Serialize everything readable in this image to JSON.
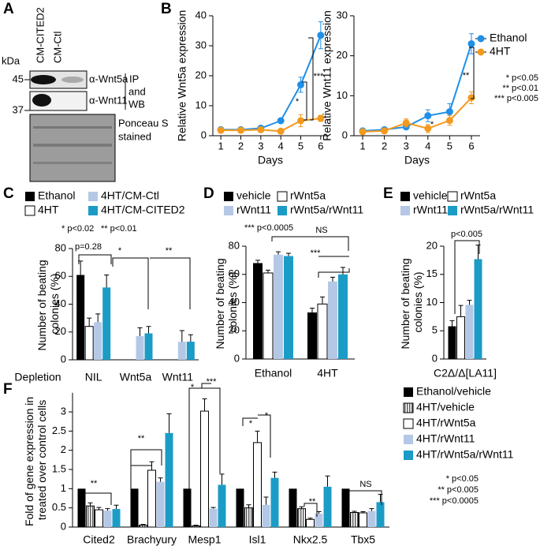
{
  "panel_labels": [
    "A",
    "B",
    "C",
    "D",
    "E",
    "F"
  ],
  "blot": {
    "unit": "kDa",
    "lanes": [
      "CM-CITED2",
      "CM-Ctl"
    ],
    "markers": [
      45,
      37
    ],
    "antibodies": [
      "α-Wnt5a",
      "α-Wnt11"
    ],
    "method": [
      "IP",
      "and",
      "WB"
    ],
    "stain": [
      "Ponceau S",
      "stained"
    ]
  },
  "chart_data": [
    {
      "type": "line",
      "ylabel": "Relative Wnt5a expression",
      "xlabel": "Days",
      "x": [
        1,
        2,
        3,
        4,
        5,
        6
      ],
      "xlim": [
        0.6,
        6.4
      ],
      "xticks": [
        1,
        2,
        3,
        4,
        5,
        6
      ],
      "ylim": [
        0,
        40
      ],
      "yticks": [
        0,
        10,
        20,
        30,
        40
      ],
      "series": [
        {
          "color": "#1f8fe8",
          "values": [
            2,
            2,
            2.5,
            5,
            17,
            33.5
          ],
          "errors": [
            0.3,
            0.6,
            0.8,
            0.6,
            2.5,
            4.5
          ]
        },
        {
          "color": "#f39a1e",
          "values": [
            1.8,
            1.8,
            2,
            1.5,
            5,
            5.8
          ],
          "errors": [
            0.3,
            0.4,
            0.5,
            0.3,
            2,
            1
          ]
        }
      ],
      "annotations": [
        "*",
        "***"
      ]
    },
    {
      "type": "line",
      "ylabel": "Relative Wnt11 expression",
      "xlabel": "Days",
      "x": [
        1,
        2,
        3,
        4,
        5,
        6
      ],
      "xlim": [
        0.6,
        6.4
      ],
      "xticks": [
        1,
        2,
        3,
        4,
        5,
        6
      ],
      "ylim": [
        0,
        30
      ],
      "yticks": [
        0,
        10,
        20,
        30
      ],
      "series": [
        {
          "name": "Ethanol",
          "color": "#1f8fe8",
          "values": [
            1.2,
            1.5,
            2.2,
            5,
            6,
            23
          ],
          "errors": [
            0.3,
            0.3,
            0.5,
            1.5,
            2,
            2.5
          ]
        },
        {
          "name": "4HT",
          "color": "#f39a1e",
          "values": [
            1,
            1.2,
            3.2,
            1.8,
            3.8,
            9.5
          ],
          "errors": [
            0.2,
            0.3,
            1,
            1,
            1.2,
            1.5
          ]
        }
      ],
      "legend": "top-right",
      "notes": [
        "* p<0.05",
        "** p<0.01",
        "*** p<0.005"
      ],
      "annotations": [
        "*",
        "**"
      ]
    },
    {
      "type": "bar",
      "ylabel": "Number of beating colonies (%)",
      "xlabel": "Depletion",
      "categories": [
        "NIL",
        "Wnt5a",
        "Wnt11"
      ],
      "ylim": [
        0,
        80
      ],
      "yticks": [
        0,
        20,
        40,
        60,
        80
      ],
      "series": [
        {
          "name": "Ethanol",
          "color": "#000000",
          "values": [
            61,
            null,
            null
          ],
          "errors": [
            10,
            null,
            null
          ]
        },
        {
          "name": "4HT",
          "color": "#ffffff",
          "values": [
            24,
            null,
            null
          ],
          "errors": [
            6,
            null,
            null
          ]
        },
        {
          "name": "4HT/CM-Ctl",
          "color": "#b4c8e6",
          "values": [
            27,
            17,
            13
          ],
          "errors": [
            6,
            6,
            8
          ]
        },
        {
          "name": "4HT/CM-CITED2",
          "color": "#1b9cc6",
          "values": [
            52,
            19,
            13
          ],
          "errors": [
            9,
            5,
            5
          ]
        }
      ],
      "legend": "top",
      "notes": [
        "* p<0.02",
        "** p<0.01"
      ],
      "annotations": [
        "p=0.28",
        "*",
        "**"
      ]
    },
    {
      "type": "bar",
      "ylabel": "Number of beating colonies (%)",
      "categories": [
        "Ethanol",
        "4HT"
      ],
      "ylim": [
        0,
        80
      ],
      "yticks": [
        0,
        20,
        40,
        60,
        80
      ],
      "series": [
        {
          "name": "vehicle",
          "color": "#000000",
          "values": [
            68,
            33
          ],
          "errors": [
            2,
            3
          ]
        },
        {
          "name": "rWnt5a",
          "color": "#ffffff",
          "values": [
            61,
            39
          ],
          "errors": [
            2,
            5
          ]
        },
        {
          "name": "rWnt11",
          "color": "#b4c8e6",
          "values": [
            74,
            55
          ],
          "errors": [
            2,
            3
          ]
        },
        {
          "name": "rWnt5a/rWnt11",
          "color": "#1b9cc6",
          "values": [
            73,
            60
          ],
          "errors": [
            2,
            5
          ]
        }
      ],
      "legend": "top",
      "notes": [
        "*** p<0.0005"
      ],
      "annotations": [
        "NS",
        "***"
      ]
    },
    {
      "type": "bar",
      "ylabel": "Number of beating colonies (%)",
      "categories": [
        "C2Δ/Δ[LA11]"
      ],
      "ylim": [
        0,
        20
      ],
      "yticks": [
        0,
        5,
        10,
        15,
        20
      ],
      "series": [
        {
          "name": "vehicle",
          "color": "#000000",
          "values": [
            5.8
          ],
          "errors": [
            1
          ]
        },
        {
          "name": "rWnt5a",
          "color": "#ffffff",
          "values": [
            7.5
          ],
          "errors": [
            2
          ]
        },
        {
          "name": "rWnt11",
          "color": "#b4c8e6",
          "values": [
            9.6
          ],
          "errors": [
            0.8
          ]
        },
        {
          "name": "rWnt5a/rWnt11",
          "color": "#1b9cc6",
          "values": [
            17.7
          ],
          "errors": [
            2.5
          ]
        }
      ],
      "legend": "top",
      "annotations": [
        "p<0.005"
      ]
    },
    {
      "type": "bar",
      "ylabel": "Fold of gene expression in treated over control cells",
      "categories": [
        "Cited2",
        "Brachyury",
        "Mesp1",
        "Isl1",
        "Nkx2.5",
        "Tbx5"
      ],
      "ylim": [
        0,
        3.5
      ],
      "yticks": [
        0,
        0.5,
        1,
        1.5,
        2,
        2.5,
        3
      ],
      "series": [
        {
          "name": "Ethanol/vehicle",
          "color": "#000000",
          "values": [
            1,
            1,
            1,
            1,
            1,
            1
          ]
        },
        {
          "name": "4HT/vehicle",
          "color": "#9e9e9e",
          "hatch": true,
          "values": [
            0.55,
            0.05,
            0.03,
            0.5,
            0.48,
            0.38
          ],
          "errors": [
            0.08,
            0.02,
            0.02,
            0.08,
            0.05,
            0.03
          ]
        },
        {
          "name": "4HT/rWnt5a",
          "color": "#ffffff",
          "values": [
            0.45,
            1.48,
            3.02,
            2.2,
            0.2,
            0.37
          ],
          "errors": [
            0.06,
            0.22,
            0.32,
            0.3,
            0.03,
            0.03
          ]
        },
        {
          "name": "4HT/rWnt11",
          "color": "#b4c8e6",
          "values": [
            0.43,
            1.18,
            0.48,
            0.58,
            0.35,
            0.42
          ],
          "errors": [
            0.05,
            0.1,
            0.03,
            0.2,
            0.05,
            0.06
          ]
        },
        {
          "name": "4HT/rWnt5a/rWnt11",
          "color": "#1b9cc6",
          "values": [
            0.47,
            2.45,
            1.1,
            1.28,
            1.05,
            0.65
          ],
          "errors": [
            0.1,
            0.5,
            0.28,
            0.15,
            0.28,
            0.2
          ]
        }
      ],
      "legend": "right",
      "notes": [
        "* p<0.05",
        "** p<0.005",
        "*** p<0.0005"
      ],
      "annotations": [
        "**",
        "**",
        "*",
        "***",
        "*",
        "*",
        "**",
        "NS"
      ]
    }
  ]
}
